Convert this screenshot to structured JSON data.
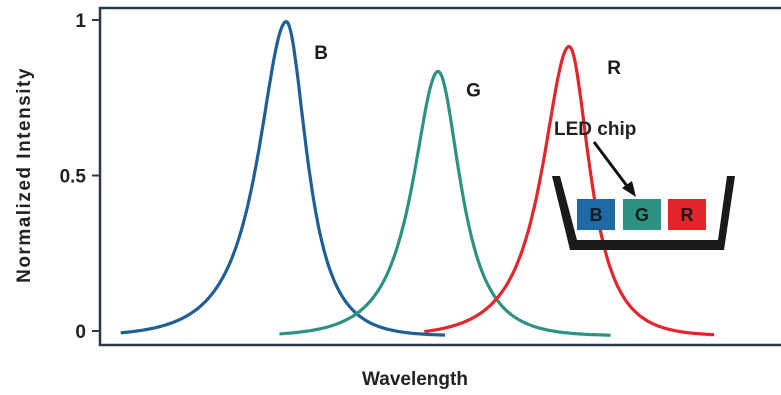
{
  "chart_data": {
    "type": "line",
    "title": "",
    "xlabel": "Wavelength",
    "ylabel": "Normalized Intensity",
    "ylim": [
      0,
      1
    ],
    "yticks": [
      {
        "value": 0,
        "label": "0"
      },
      {
        "value": 0.5,
        "label": "0.5"
      },
      {
        "value": 1,
        "label": "1"
      }
    ],
    "xticks_shown": false,
    "grid": false,
    "series": [
      {
        "name": "B",
        "color": "#1f5f95",
        "peak_x": 0.27,
        "peak_y": 1.01,
        "width_left": 0.075,
        "width_right": 0.055,
        "start_x": 0.03,
        "end_x": 0.5
      },
      {
        "name": "G",
        "color": "#2e9282",
        "peak_x": 0.49,
        "peak_y": 0.85,
        "width_left": 0.068,
        "width_right": 0.06,
        "start_x": 0.26,
        "end_x": 0.74
      },
      {
        "name": "R",
        "color": "#e2262c",
        "peak_x": 0.68,
        "peak_y": 0.93,
        "width_left": 0.072,
        "width_right": 0.055,
        "start_x": 0.47,
        "end_x": 0.89
      }
    ],
    "annotation": {
      "text": "LED chip",
      "chips": [
        {
          "label": "B",
          "color": "#1f6aa5"
        },
        {
          "label": "G",
          "color": "#2e9282"
        },
        {
          "label": "R",
          "color": "#e2262c"
        }
      ]
    }
  }
}
